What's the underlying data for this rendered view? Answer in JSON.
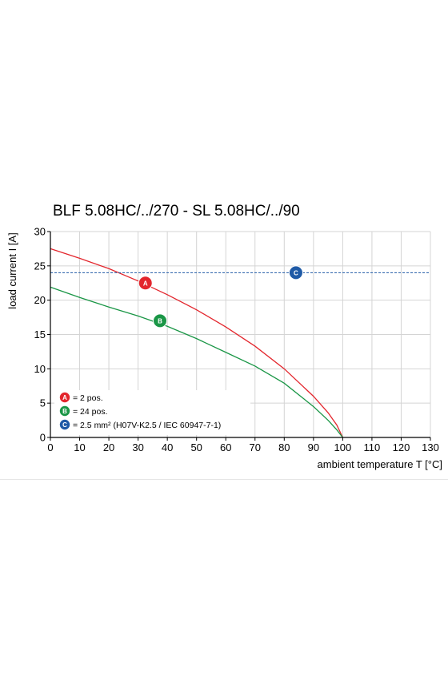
{
  "chart_data": {
    "type": "line",
    "title": "BLF 5.08HC/../270 - SL 5.08HC/../90",
    "xlabel": "ambient temperature T [°C]",
    "ylabel": "load current I [A]",
    "xlim": [
      0,
      130
    ],
    "ylim": [
      0,
      30
    ],
    "xticks": [
      0,
      10,
      20,
      30,
      40,
      50,
      60,
      70,
      80,
      90,
      100,
      110,
      120,
      130
    ],
    "yticks": [
      0,
      5,
      10,
      15,
      20,
      25,
      30
    ],
    "grid": true,
    "legend_position": "bottom-left",
    "series": [
      {
        "marker": "A",
        "label": "= 2 pos.",
        "color": "#e3262d",
        "style": "solid",
        "x": [
          0,
          10,
          20,
          30,
          40,
          50,
          60,
          70,
          80,
          90,
          95,
          98,
          100
        ],
        "y": [
          27.5,
          26.1,
          24.6,
          22.8,
          20.8,
          18.6,
          16.1,
          13.3,
          10.0,
          6.0,
          3.6,
          1.8,
          0
        ]
      },
      {
        "marker": "B",
        "label": "= 24 pos.",
        "color": "#1a9646",
        "style": "solid",
        "x": [
          0,
          10,
          20,
          30,
          40,
          50,
          60,
          70,
          80,
          90,
          95,
          98,
          100
        ],
        "y": [
          21.9,
          20.4,
          19.0,
          17.7,
          16.2,
          14.4,
          12.4,
          10.4,
          7.9,
          4.5,
          2.5,
          1.1,
          0
        ]
      },
      {
        "marker": "C",
        "label": "= 2.5 mm² (H07V-K2.5 / IEC 60947-7-1)",
        "color": "#1f5aa6",
        "style": "dashed",
        "x": [
          0,
          130
        ],
        "y": [
          24,
          24
        ]
      }
    ],
    "markers": [
      {
        "letter": "A",
        "x": 32.5,
        "y": 22.5,
        "color": "#e3262d"
      },
      {
        "letter": "B",
        "x": 37.5,
        "y": 17.0,
        "color": "#1a9646"
      },
      {
        "letter": "C",
        "x": 84,
        "y": 24.0,
        "color": "#1f5aa6"
      }
    ]
  }
}
